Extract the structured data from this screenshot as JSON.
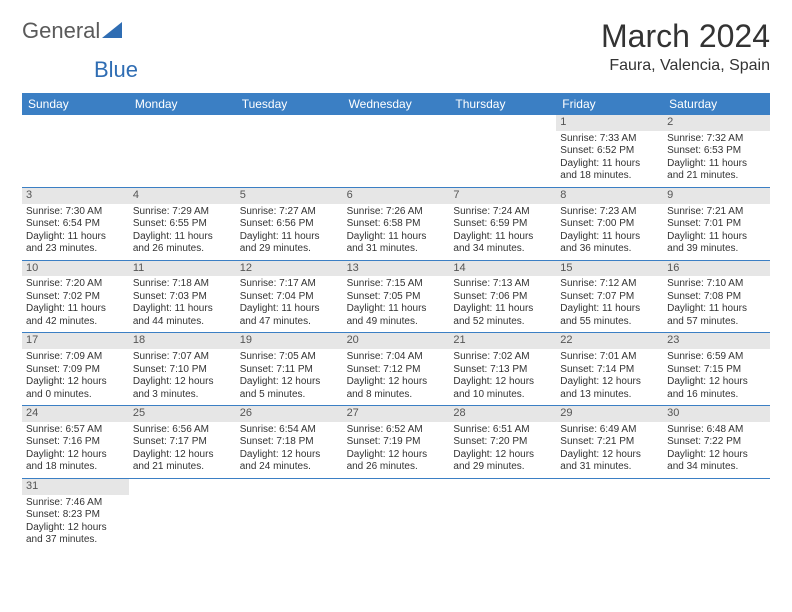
{
  "logo": {
    "word1": "General",
    "word2": "Blue"
  },
  "title": "March 2024",
  "location": "Faura, Valencia, Spain",
  "accent_color": "#3b7fc4",
  "daynum_bg": "#e6e6e6",
  "days_of_week": [
    "Sunday",
    "Monday",
    "Tuesday",
    "Wednesday",
    "Thursday",
    "Friday",
    "Saturday"
  ],
  "weeks": [
    [
      {
        "n": "",
        "lines": [
          "",
          "",
          "",
          ""
        ]
      },
      {
        "n": "",
        "lines": [
          "",
          "",
          "",
          ""
        ]
      },
      {
        "n": "",
        "lines": [
          "",
          "",
          "",
          ""
        ]
      },
      {
        "n": "",
        "lines": [
          "",
          "",
          "",
          ""
        ]
      },
      {
        "n": "",
        "lines": [
          "",
          "",
          "",
          ""
        ]
      },
      {
        "n": "1",
        "lines": [
          "Sunrise: 7:33 AM",
          "Sunset: 6:52 PM",
          "Daylight: 11 hours",
          "and 18 minutes."
        ]
      },
      {
        "n": "2",
        "lines": [
          "Sunrise: 7:32 AM",
          "Sunset: 6:53 PM",
          "Daylight: 11 hours",
          "and 21 minutes."
        ]
      }
    ],
    [
      {
        "n": "3",
        "lines": [
          "Sunrise: 7:30 AM",
          "Sunset: 6:54 PM",
          "Daylight: 11 hours",
          "and 23 minutes."
        ]
      },
      {
        "n": "4",
        "lines": [
          "Sunrise: 7:29 AM",
          "Sunset: 6:55 PM",
          "Daylight: 11 hours",
          "and 26 minutes."
        ]
      },
      {
        "n": "5",
        "lines": [
          "Sunrise: 7:27 AM",
          "Sunset: 6:56 PM",
          "Daylight: 11 hours",
          "and 29 minutes."
        ]
      },
      {
        "n": "6",
        "lines": [
          "Sunrise: 7:26 AM",
          "Sunset: 6:58 PM",
          "Daylight: 11 hours",
          "and 31 minutes."
        ]
      },
      {
        "n": "7",
        "lines": [
          "Sunrise: 7:24 AM",
          "Sunset: 6:59 PM",
          "Daylight: 11 hours",
          "and 34 minutes."
        ]
      },
      {
        "n": "8",
        "lines": [
          "Sunrise: 7:23 AM",
          "Sunset: 7:00 PM",
          "Daylight: 11 hours",
          "and 36 minutes."
        ]
      },
      {
        "n": "9",
        "lines": [
          "Sunrise: 7:21 AM",
          "Sunset: 7:01 PM",
          "Daylight: 11 hours",
          "and 39 minutes."
        ]
      }
    ],
    [
      {
        "n": "10",
        "lines": [
          "Sunrise: 7:20 AM",
          "Sunset: 7:02 PM",
          "Daylight: 11 hours",
          "and 42 minutes."
        ]
      },
      {
        "n": "11",
        "lines": [
          "Sunrise: 7:18 AM",
          "Sunset: 7:03 PM",
          "Daylight: 11 hours",
          "and 44 minutes."
        ]
      },
      {
        "n": "12",
        "lines": [
          "Sunrise: 7:17 AM",
          "Sunset: 7:04 PM",
          "Daylight: 11 hours",
          "and 47 minutes."
        ]
      },
      {
        "n": "13",
        "lines": [
          "Sunrise: 7:15 AM",
          "Sunset: 7:05 PM",
          "Daylight: 11 hours",
          "and 49 minutes."
        ]
      },
      {
        "n": "14",
        "lines": [
          "Sunrise: 7:13 AM",
          "Sunset: 7:06 PM",
          "Daylight: 11 hours",
          "and 52 minutes."
        ]
      },
      {
        "n": "15",
        "lines": [
          "Sunrise: 7:12 AM",
          "Sunset: 7:07 PM",
          "Daylight: 11 hours",
          "and 55 minutes."
        ]
      },
      {
        "n": "16",
        "lines": [
          "Sunrise: 7:10 AM",
          "Sunset: 7:08 PM",
          "Daylight: 11 hours",
          "and 57 minutes."
        ]
      }
    ],
    [
      {
        "n": "17",
        "lines": [
          "Sunrise: 7:09 AM",
          "Sunset: 7:09 PM",
          "Daylight: 12 hours",
          "and 0 minutes."
        ]
      },
      {
        "n": "18",
        "lines": [
          "Sunrise: 7:07 AM",
          "Sunset: 7:10 PM",
          "Daylight: 12 hours",
          "and 3 minutes."
        ]
      },
      {
        "n": "19",
        "lines": [
          "Sunrise: 7:05 AM",
          "Sunset: 7:11 PM",
          "Daylight: 12 hours",
          "and 5 minutes."
        ]
      },
      {
        "n": "20",
        "lines": [
          "Sunrise: 7:04 AM",
          "Sunset: 7:12 PM",
          "Daylight: 12 hours",
          "and 8 minutes."
        ]
      },
      {
        "n": "21",
        "lines": [
          "Sunrise: 7:02 AM",
          "Sunset: 7:13 PM",
          "Daylight: 12 hours",
          "and 10 minutes."
        ]
      },
      {
        "n": "22",
        "lines": [
          "Sunrise: 7:01 AM",
          "Sunset: 7:14 PM",
          "Daylight: 12 hours",
          "and 13 minutes."
        ]
      },
      {
        "n": "23",
        "lines": [
          "Sunrise: 6:59 AM",
          "Sunset: 7:15 PM",
          "Daylight: 12 hours",
          "and 16 minutes."
        ]
      }
    ],
    [
      {
        "n": "24",
        "lines": [
          "Sunrise: 6:57 AM",
          "Sunset: 7:16 PM",
          "Daylight: 12 hours",
          "and 18 minutes."
        ]
      },
      {
        "n": "25",
        "lines": [
          "Sunrise: 6:56 AM",
          "Sunset: 7:17 PM",
          "Daylight: 12 hours",
          "and 21 minutes."
        ]
      },
      {
        "n": "26",
        "lines": [
          "Sunrise: 6:54 AM",
          "Sunset: 7:18 PM",
          "Daylight: 12 hours",
          "and 24 minutes."
        ]
      },
      {
        "n": "27",
        "lines": [
          "Sunrise: 6:52 AM",
          "Sunset: 7:19 PM",
          "Daylight: 12 hours",
          "and 26 minutes."
        ]
      },
      {
        "n": "28",
        "lines": [
          "Sunrise: 6:51 AM",
          "Sunset: 7:20 PM",
          "Daylight: 12 hours",
          "and 29 minutes."
        ]
      },
      {
        "n": "29",
        "lines": [
          "Sunrise: 6:49 AM",
          "Sunset: 7:21 PM",
          "Daylight: 12 hours",
          "and 31 minutes."
        ]
      },
      {
        "n": "30",
        "lines": [
          "Sunrise: 6:48 AM",
          "Sunset: 7:22 PM",
          "Daylight: 12 hours",
          "and 34 minutes."
        ]
      }
    ],
    [
      {
        "n": "31",
        "lines": [
          "Sunrise: 7:46 AM",
          "Sunset: 8:23 PM",
          "Daylight: 12 hours",
          "and 37 minutes."
        ]
      },
      {
        "n": "",
        "lines": [
          "",
          "",
          "",
          ""
        ]
      },
      {
        "n": "",
        "lines": [
          "",
          "",
          "",
          ""
        ]
      },
      {
        "n": "",
        "lines": [
          "",
          "",
          "",
          ""
        ]
      },
      {
        "n": "",
        "lines": [
          "",
          "",
          "",
          ""
        ]
      },
      {
        "n": "",
        "lines": [
          "",
          "",
          "",
          ""
        ]
      },
      {
        "n": "",
        "lines": [
          "",
          "",
          "",
          ""
        ]
      }
    ]
  ]
}
